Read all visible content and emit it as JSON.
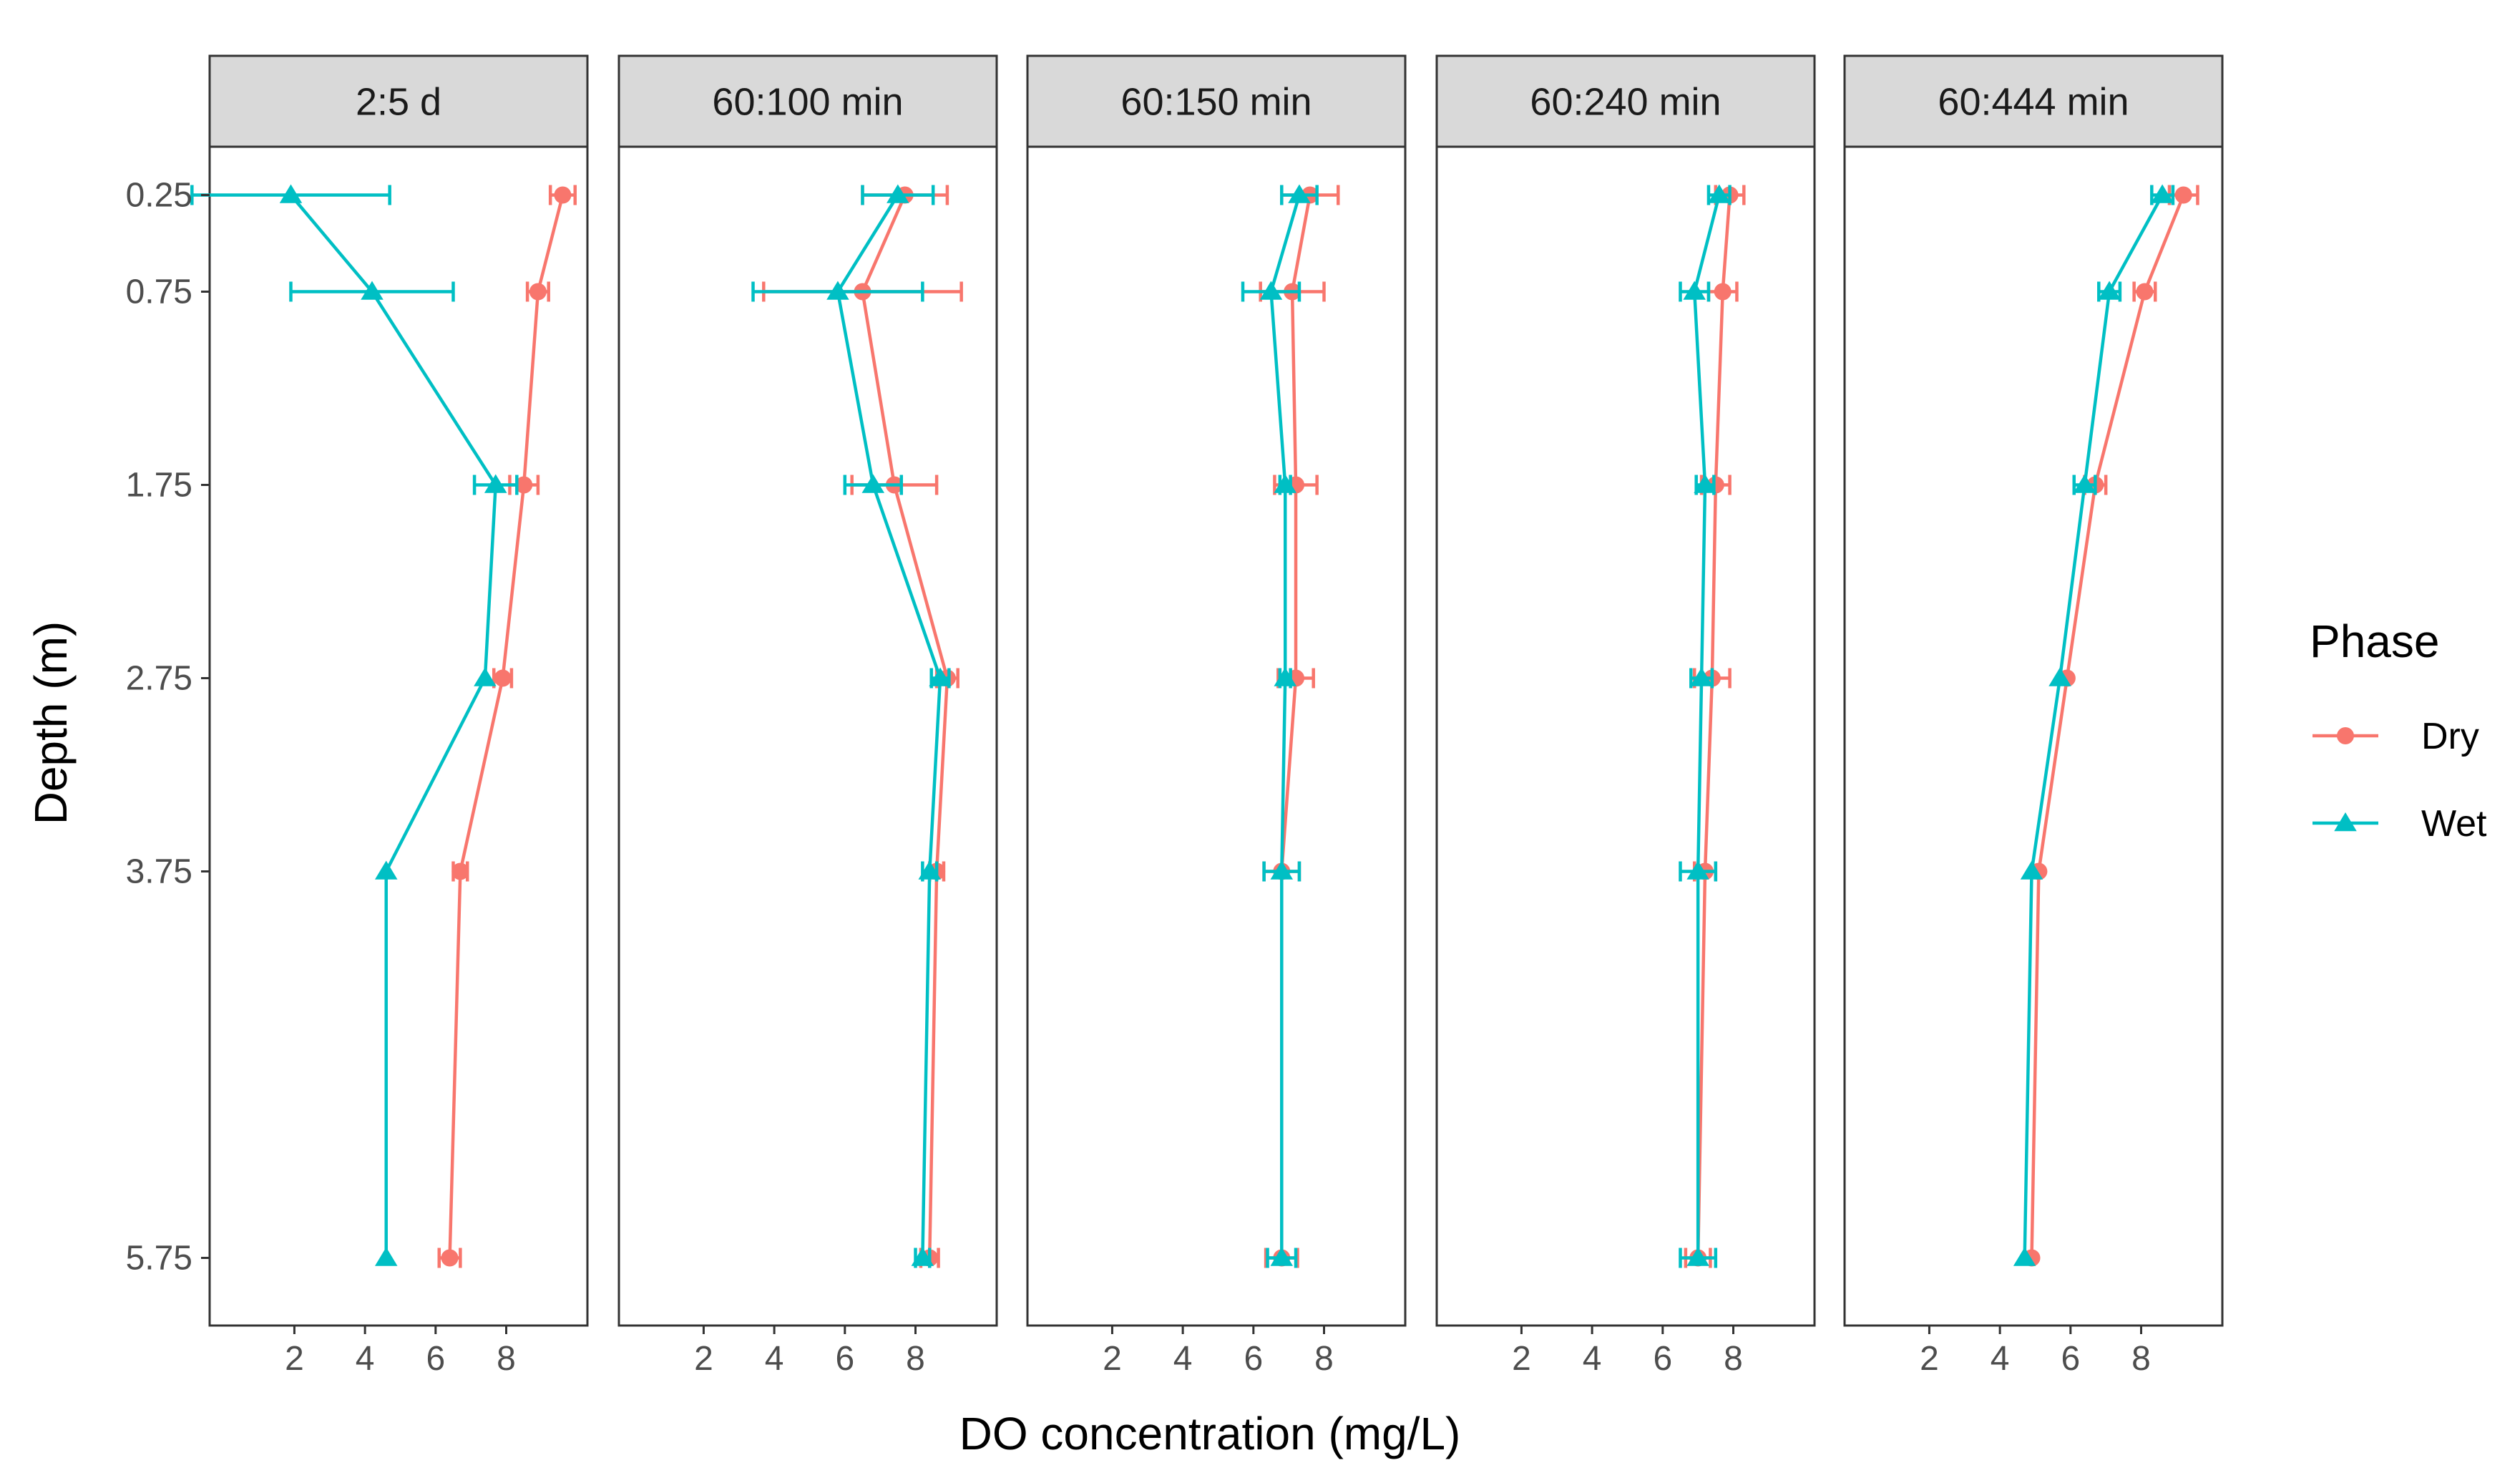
{
  "chart_data": {
    "type": "line",
    "xlabel": "DO concentration (mg/L)",
    "ylabel": "Depth (m)",
    "x_ticks": [
      2,
      4,
      6,
      8
    ],
    "xlim": [
      -0.4,
      10.3
    ],
    "y_ticks": [
      0.25,
      0.75,
      1.75,
      2.75,
      3.75,
      5.75
    ],
    "y_tick_labels": [
      "0.25",
      "0.75",
      "1.75",
      "2.75",
      "3.75",
      "5.75"
    ],
    "ylim": [
      0.0,
      6.1
    ],
    "y_reversed": true,
    "grid": false,
    "legend": {
      "title": "Phase",
      "position": "right",
      "entries": [
        {
          "label": "Dry",
          "color": "#F8766D",
          "shape": "circle"
        },
        {
          "label": "Wet",
          "color": "#00BFC4",
          "shape": "triangle"
        }
      ]
    },
    "panels": [
      {
        "title": "2:5 d",
        "series": [
          {
            "name": "Dry",
            "x": [
              9.6,
              8.9,
              8.5,
              7.9,
              6.7,
              6.4
            ],
            "err": [
              0.35,
              0.3,
              0.4,
              0.25,
              0.2,
              0.3
            ]
          },
          {
            "name": "Wet",
            "x": [
              1.9,
              4.2,
              7.7,
              7.4,
              4.6,
              4.6
            ],
            "err": [
              2.8,
              2.3,
              0.6,
              0.0,
              0.0,
              0.0
            ]
          }
        ]
      },
      {
        "title": "60:100 min",
        "series": [
          {
            "name": "Dry",
            "x": [
              7.7,
              6.5,
              7.4,
              8.9,
              8.6,
              8.4
            ],
            "err": [
              1.2,
              2.8,
              1.2,
              0.3,
              0.2,
              0.25
            ]
          },
          {
            "name": "Wet",
            "x": [
              7.5,
              5.8,
              6.8,
              8.7,
              8.4,
              8.2
            ],
            "err": [
              1.0,
              2.4,
              0.8,
              0.25,
              0.2,
              0.2
            ]
          }
        ]
      },
      {
        "title": "60:150 min",
        "series": [
          {
            "name": "Dry",
            "x": [
              7.6,
              7.1,
              7.2,
              7.2,
              6.8,
              6.8
            ],
            "err": [
              0.8,
              0.9,
              0.6,
              0.5,
              0.5,
              0.45
            ]
          },
          {
            "name": "Wet",
            "x": [
              7.3,
              6.5,
              6.9,
              6.9,
              6.8,
              6.8
            ],
            "err": [
              0.5,
              0.8,
              0.15,
              0.15,
              0.5,
              0.4
            ]
          }
        ]
      },
      {
        "title": "60:240 min",
        "series": [
          {
            "name": "Dry",
            "x": [
              7.9,
              7.7,
              7.5,
              7.4,
              7.2,
              7.0
            ],
            "err": [
              0.4,
              0.4,
              0.4,
              0.5,
              0.3,
              0.35
            ]
          },
          {
            "name": "Wet",
            "x": [
              7.6,
              6.9,
              7.2,
              7.1,
              7.0,
              7.0
            ],
            "err": [
              0.3,
              0.4,
              0.25,
              0.3,
              0.5,
              0.5
            ]
          }
        ]
      },
      {
        "title": "60:444 min",
        "series": [
          {
            "name": "Dry",
            "x": [
              9.2,
              8.1,
              6.7,
              5.9,
              5.1,
              4.9
            ],
            "err": [
              0.4,
              0.3,
              0.3,
              0.0,
              0.0,
              0.0
            ]
          },
          {
            "name": "Wet",
            "x": [
              8.6,
              7.1,
              6.4,
              5.7,
              4.9,
              4.7
            ],
            "err": [
              0.3,
              0.3,
              0.3,
              0.0,
              0.0,
              0.0
            ]
          }
        ]
      }
    ]
  }
}
